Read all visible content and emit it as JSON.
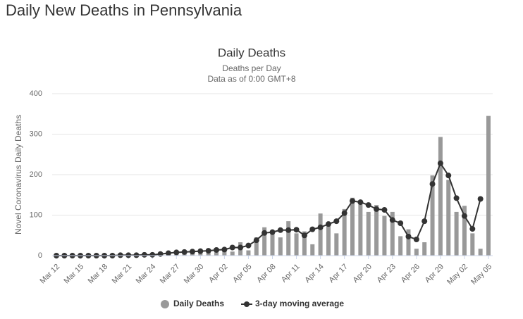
{
  "header": {
    "title": "Daily New Deaths in Pennsylvania"
  },
  "chart_data": {
    "type": "bar",
    "title": "Daily Deaths",
    "subtitle": [
      "Deaths per Day",
      "Data as of 0:00 GMT+8"
    ],
    "ylabel": "Novel Coronavirus Daily Deaths",
    "categories": [
      "Mar 12",
      null,
      null,
      "Mar 15",
      null,
      null,
      "Mar 18",
      null,
      null,
      "Mar 21",
      null,
      null,
      "Mar 24",
      null,
      null,
      "Mar 27",
      null,
      null,
      "Mar 30",
      null,
      null,
      "Apr 02",
      null,
      null,
      "Apr 05",
      null,
      null,
      "Apr 08",
      null,
      null,
      "Apr 11",
      null,
      null,
      "Apr 14",
      null,
      null,
      "Apr 17",
      null,
      null,
      "Apr 20",
      null,
      null,
      "Apr 23",
      null,
      null,
      "Apr 26",
      null,
      null,
      "Apr 29",
      null,
      null,
      "May 02",
      null,
      null,
      "May 05"
    ],
    "series": [
      {
        "name": "Daily Deaths",
        "type": "bar",
        "color": "#999999",
        "values": [
          0,
          0,
          0,
          0,
          0,
          0,
          0,
          1,
          1,
          1,
          2,
          2,
          3,
          4,
          6,
          9,
          11,
          10,
          12,
          14,
          16,
          16,
          10,
          33,
          13,
          45,
          70,
          62,
          45,
          85,
          55,
          60,
          28,
          104,
          80,
          55,
          115,
          143,
          130,
          108,
          125,
          98,
          108,
          48,
          65,
          17,
          33,
          198,
          293,
          187,
          108,
          123,
          55,
          17,
          345
        ]
      },
      {
        "name": "3-day moving average",
        "type": "line",
        "color": "#333333",
        "values": [
          0,
          0,
          0,
          0,
          0,
          0,
          0,
          0,
          1,
          1,
          1,
          2,
          2,
          4,
          6,
          8,
          9,
          10,
          11,
          12,
          14,
          15,
          20,
          20,
          25,
          38,
          56,
          58,
          63,
          63,
          64,
          50,
          65,
          70,
          78,
          85,
          105,
          135,
          132,
          125,
          115,
          113,
          88,
          80,
          47,
          40,
          85,
          177,
          228,
          198,
          142,
          98,
          66,
          140,
          null
        ]
      }
    ],
    "ylim": [
      0,
      400
    ],
    "yticks": [
      0,
      100,
      200,
      300,
      400
    ],
    "grid": true
  }
}
